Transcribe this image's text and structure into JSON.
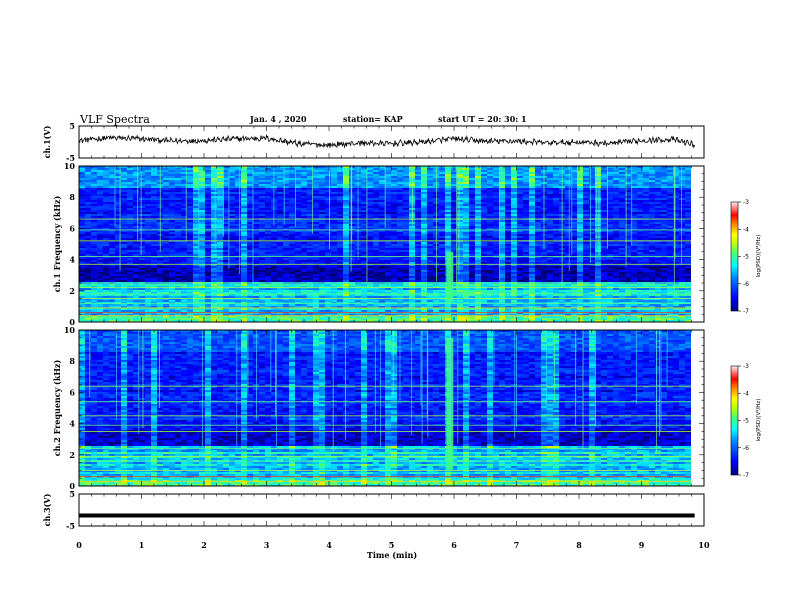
{
  "header": {
    "title": "VLF Spectra",
    "date": "Jan. 4 , 2020",
    "station": "station= KAP",
    "start": "start UT = 20: 30: 1"
  },
  "chart_data": [
    {
      "type": "line",
      "panel": "ch1-waveform",
      "ylabel": "ch.1(V)",
      "ylim": [
        -5,
        5
      ],
      "yticks": [
        "5",
        "-5"
      ],
      "xlim": [
        0,
        10
      ],
      "x_extent_min": [
        0,
        9.85
      ],
      "series": [
        {
          "x": [
            0,
            0.5,
            1,
            1.5,
            2,
            2.5,
            3,
            3.5,
            4,
            4.5,
            5,
            5.5,
            6,
            6.5,
            7,
            7.5,
            8,
            8.5,
            9,
            9.5,
            9.85
          ],
          "values": [
            0.5,
            1.3,
            1.0,
            0.3,
            0.5,
            1.0,
            1.2,
            -0.5,
            -1.0,
            -0.3,
            -0.5,
            0.0,
            1.0,
            0.2,
            0.3,
            -0.3,
            0.0,
            -0.5,
            0.5,
            0.8,
            -0.8
          ]
        }
      ]
    },
    {
      "type": "heatmap",
      "panel": "ch1-spectrogram",
      "ylabel": "ch.1 Frequency (kHz)",
      "ylim": [
        0,
        10
      ],
      "yticks": [
        "0",
        "2",
        "4",
        "6",
        "8",
        "10"
      ],
      "xlim": [
        0,
        10
      ],
      "colorbar": {
        "range": [
          -7,
          -3
        ],
        "ticks": [
          "-3",
          "-4",
          "-5",
          "-6",
          "-7"
        ],
        "label": "log(PSD)(V²/Hz)"
      },
      "notable_features": {
        "broadband_burst_min": 5.93,
        "low_band_khz": [
          0.3,
          2.5
        ]
      }
    },
    {
      "type": "heatmap",
      "panel": "ch2-spectrogram",
      "ylabel": "ch.2 Frequency (kHz)",
      "ylim": [
        0,
        10
      ],
      "yticks": [
        "0",
        "2",
        "4",
        "6",
        "8",
        "10"
      ],
      "xlim": [
        0,
        10
      ],
      "colorbar": {
        "range": [
          -7,
          -3
        ],
        "ticks": [
          "-3",
          "-4",
          "-5",
          "-6",
          "-7"
        ],
        "label": "log(PSD)(V²/Hz)"
      },
      "notable_features": {
        "broadband_burst_min": 5.93,
        "low_band_khz": [
          0.3,
          2.0
        ]
      }
    },
    {
      "type": "line",
      "panel": "ch3-waveform",
      "ylabel": "ch.3(V)",
      "ylim": [
        -5,
        5
      ],
      "yticks": [
        "5",
        "-5"
      ],
      "xlim": [
        0,
        10
      ],
      "series": [
        {
          "x": [
            0,
            9.85
          ],
          "values": [
            -1.7,
            -1.7
          ]
        }
      ]
    }
  ],
  "xaxis": {
    "label": "Time (min)",
    "ticks": [
      "0",
      "1",
      "2",
      "3",
      "4",
      "5",
      "6",
      "7",
      "8",
      "9",
      "10"
    ]
  },
  "colors": {
    "axis": "#000000",
    "colormap": [
      "#00007f",
      "#0000ff",
      "#0080ff",
      "#00ffff",
      "#80ff80",
      "#ffff00",
      "#ff8000",
      "#ff0000",
      "#ffe0e0"
    ]
  }
}
